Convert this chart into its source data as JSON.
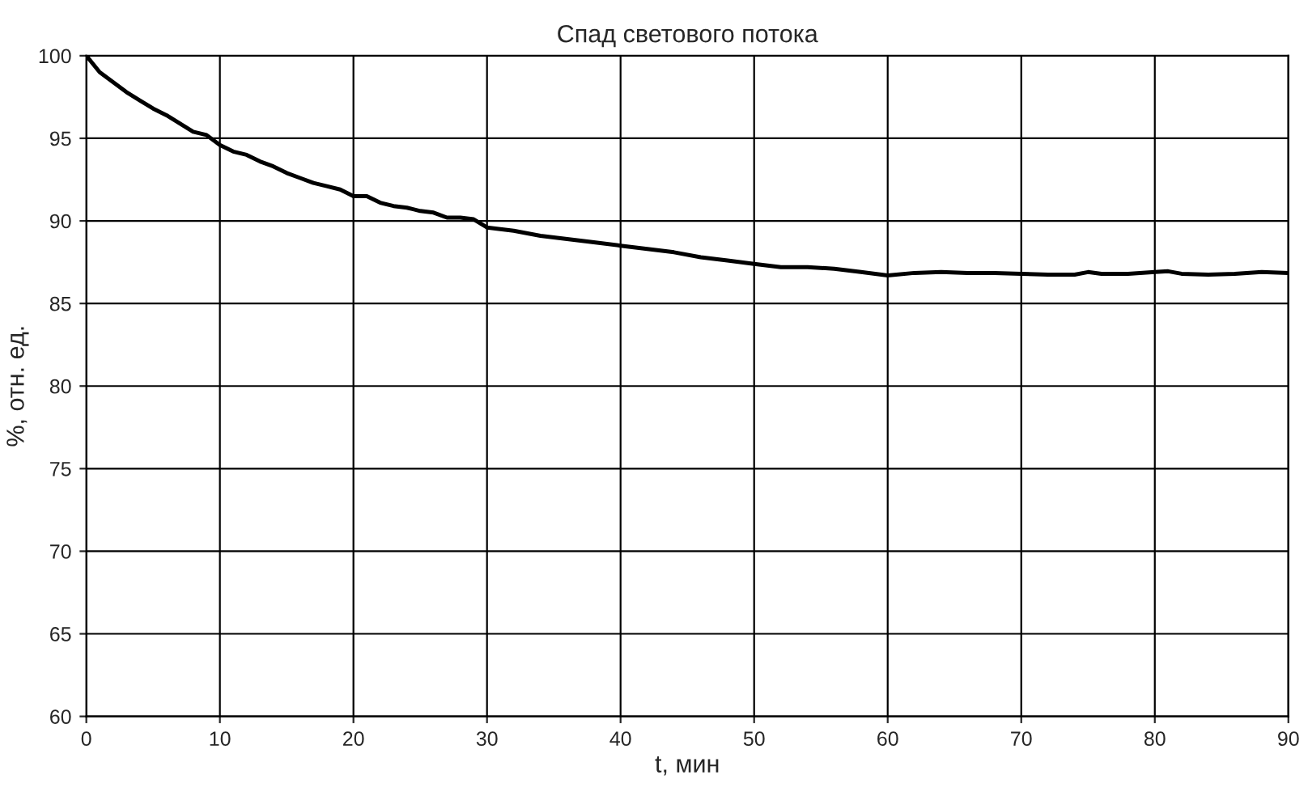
{
  "chart_data": {
    "type": "line",
    "title": "Спад светового потока",
    "xlabel": "t, мин",
    "ylabel": "%, отн. ед.",
    "xlim": [
      0,
      90
    ],
    "xticks": [
      0,
      10,
      20,
      30,
      40,
      50,
      60,
      70,
      80,
      90
    ],
    "ylim": [
      60,
      100
    ],
    "yticks": [
      60,
      65,
      70,
      75,
      80,
      85,
      90,
      95,
      100
    ],
    "grid": true,
    "legend": false,
    "marker": "none",
    "line_style": "solid",
    "series": [
      {
        "color": "#000000",
        "x": [
          0,
          1,
          2,
          3,
          4,
          5,
          6,
          7,
          8,
          9,
          10,
          11,
          12,
          13,
          14,
          15,
          16,
          17,
          18,
          19,
          20,
          21,
          22,
          23,
          24,
          25,
          26,
          27,
          28,
          29,
          30,
          32,
          34,
          36,
          38,
          40,
          42,
          44,
          46,
          48,
          50,
          52,
          54,
          56,
          58,
          60,
          62,
          64,
          66,
          68,
          70,
          72,
          74,
          75,
          76,
          78,
          80,
          81,
          82,
          84,
          86,
          88,
          90
        ],
        "values": [
          100,
          99.0,
          98.4,
          97.8,
          97.3,
          96.8,
          96.4,
          95.9,
          95.4,
          95.2,
          94.6,
          94.2,
          94.0,
          93.6,
          93.3,
          92.9,
          92.6,
          92.3,
          92.1,
          91.9,
          91.5,
          91.5,
          91.1,
          90.9,
          90.8,
          90.6,
          90.5,
          90.2,
          90.2,
          90.1,
          89.6,
          89.4,
          89.1,
          88.9,
          88.7,
          88.5,
          88.3,
          88.1,
          87.8,
          87.6,
          87.4,
          87.2,
          87.2,
          87.1,
          86.9,
          86.7,
          86.85,
          86.9,
          86.85,
          86.85,
          86.8,
          86.75,
          86.75,
          86.9,
          86.8,
          86.8,
          86.9,
          86.95,
          86.8,
          86.75,
          86.8,
          86.9,
          86.85
        ]
      }
    ]
  }
}
